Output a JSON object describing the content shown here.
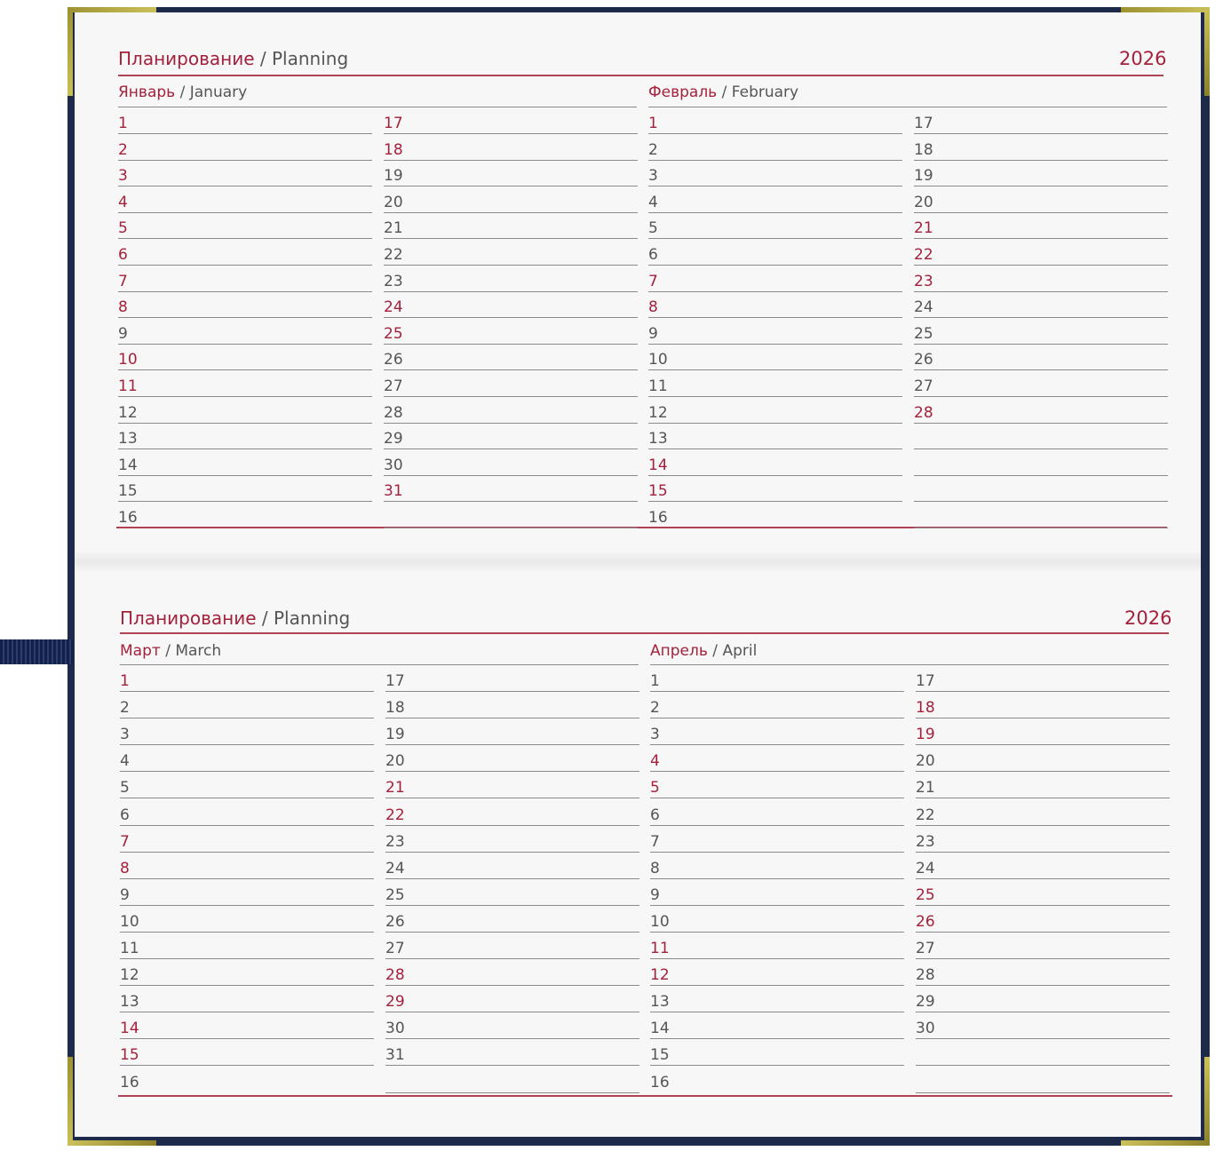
{
  "colors": {
    "accent": "#a3213b",
    "cover": "#1d2a4a",
    "corner": "#b0a640"
  },
  "spreads": [
    {
      "title_ru": "Планирование",
      "title_sep": "/",
      "title_en": "Planning",
      "year": "2026",
      "months": [
        {
          "ru": "Январь",
          "en": "January",
          "days": 31,
          "red_days": [
            1,
            2,
            3,
            4,
            5,
            6,
            7,
            8,
            10,
            11,
            17,
            18,
            24,
            25,
            31
          ]
        },
        {
          "ru": "Февраль",
          "en": "February",
          "days": 28,
          "red_days": [
            1,
            7,
            8,
            14,
            15,
            21,
            22,
            23,
            28
          ]
        }
      ]
    },
    {
      "title_ru": "Планирование",
      "title_sep": "/",
      "title_en": "Planning",
      "year": "2026",
      "months": [
        {
          "ru": "Март",
          "en": "March",
          "days": 31,
          "red_days": [
            1,
            7,
            8,
            14,
            15,
            21,
            22,
            28,
            29
          ]
        },
        {
          "ru": "Апрель",
          "en": "April",
          "days": 30,
          "red_days": [
            4,
            5,
            11,
            12,
            18,
            19,
            25,
            26
          ]
        }
      ]
    }
  ]
}
